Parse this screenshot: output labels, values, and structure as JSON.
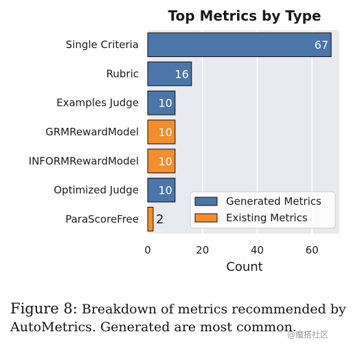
{
  "chart_data": {
    "type": "bar",
    "orientation": "horizontal",
    "title": "Top Metrics by Type",
    "xlabel": "Count",
    "ylabel": "",
    "xlim": [
      0,
      70
    ],
    "xticks": [
      0,
      20,
      40,
      60
    ],
    "grid": true,
    "categories": [
      "Single Criteria",
      "Rubric",
      "Examples Judge",
      "GRMRewardModel",
      "INFORMRewardModel",
      "Optimized Judge",
      "ParaScoreFree"
    ],
    "values": [
      67,
      16,
      10,
      10,
      10,
      10,
      2
    ],
    "types": [
      "Generated Metrics",
      "Generated Metrics",
      "Generated Metrics",
      "Existing Metrics",
      "Existing Metrics",
      "Generated Metrics",
      "Existing Metrics"
    ],
    "series": [
      {
        "name": "Generated Metrics",
        "color": "#4a76a8"
      },
      {
        "name": "Existing Metrics",
        "color": "#f28e2b"
      }
    ],
    "legend_position": "bottom-right",
    "background_color": "#e9e9f0"
  },
  "caption": {
    "label": "Figure 8:",
    "text": "Breakdown of metrics recommended by AutoMetrics. Generated are most common."
  },
  "watermark": "@魔搭社区"
}
